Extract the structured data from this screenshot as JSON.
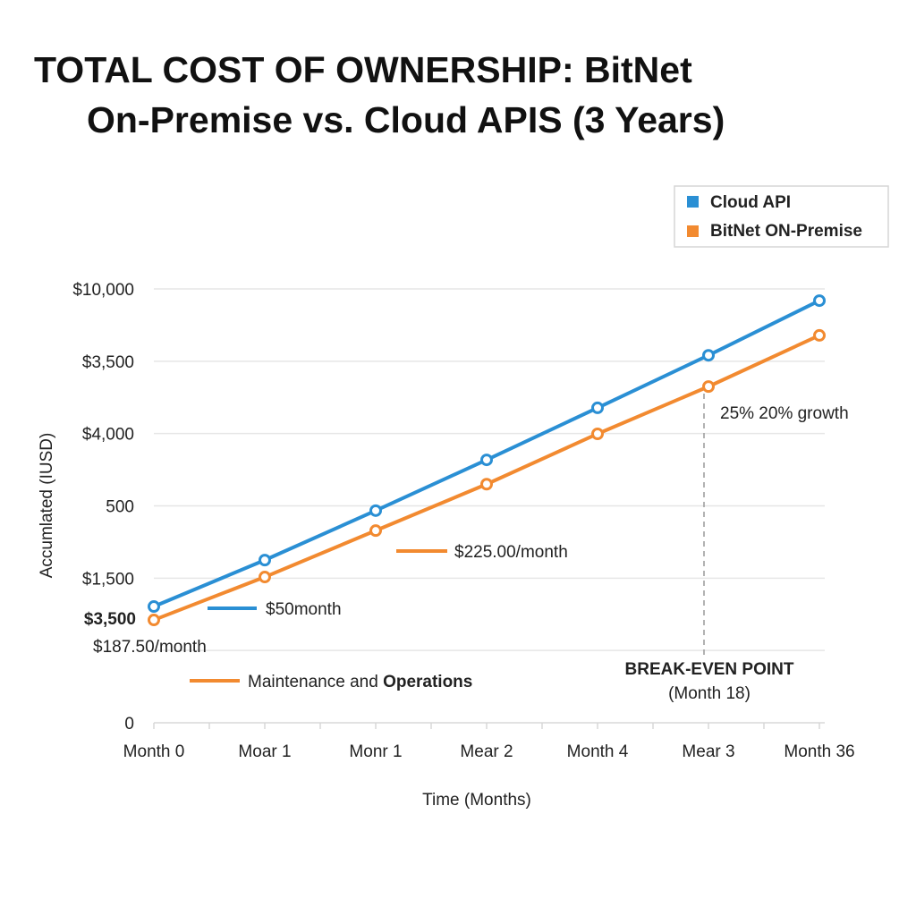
{
  "chart_data": {
    "type": "line",
    "title_line1": "TOTAL COST OF OWNERSHIP: BitNet",
    "title_line2": "On-Premise vs. Cloud APIS (3 Years)",
    "xlabel": "Time (Months)",
    "ylabel": "Accumlated (IUSD)",
    "categories": [
      "Month 0",
      "Moar 1",
      "Monr 1",
      "Mear 2",
      "Month 4",
      "Mear 3",
      "Month 36"
    ],
    "y_tick_labels": [
      "0",
      "",
      "$1,500",
      "500",
      "$4,000",
      "$3,500",
      "$10,000"
    ],
    "extra_y_label": "$3,500",
    "ylim": [
      0,
      10000
    ],
    "grid": true,
    "legend_position": "top-right",
    "series": [
      {
        "name": "Cloud API",
        "color": "#2a8fd4",
        "values": [
          2680,
          3750,
          4890,
          6060,
          7260,
          8470,
          9730
        ]
      },
      {
        "name": "BitNet ON-Premise",
        "color": "#f28a30",
        "values": [
          2370,
          3360,
          4430,
          5500,
          6660,
          7750,
          8930
        ]
      }
    ],
    "annotations": {
      "cloud_rate": "$50month",
      "onprem_rate": "$225.00/month",
      "start_rate": "$187.50/month",
      "maintenance_prefix": "Maintenance and ",
      "maintenance_bold": "Operations",
      "growth": "25% 20% growth",
      "break_even_title": "BREAK-EVEN POINT",
      "break_even_sub": "(Month 18)"
    }
  }
}
